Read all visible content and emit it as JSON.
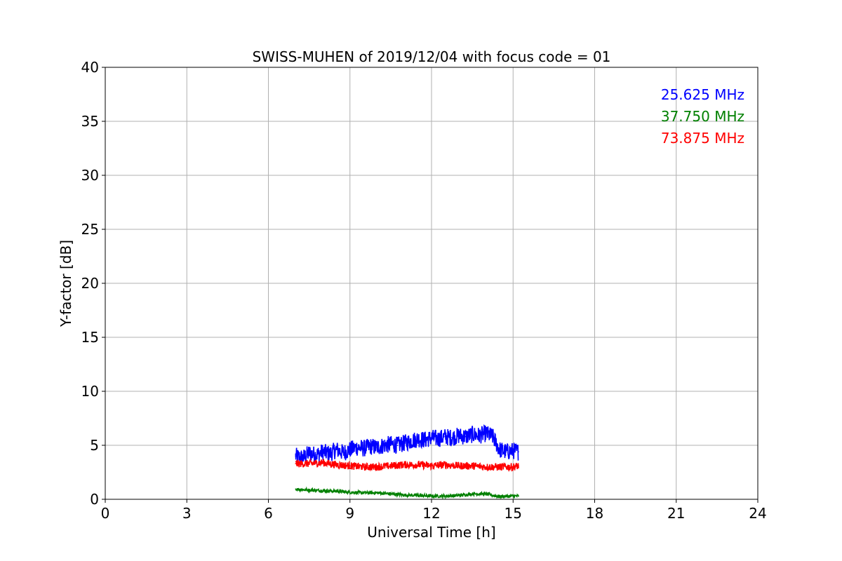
{
  "chart_data": {
    "type": "line",
    "title": "SWISS-MUHEN of 2019/12/04 with focus code = 01",
    "xlabel": "Universal Time [h]",
    "ylabel": "Y-factor [dB]",
    "xlim": [
      0,
      24
    ],
    "ylim": [
      0,
      40
    ],
    "x_ticks": [
      0,
      3,
      6,
      9,
      12,
      15,
      18,
      21,
      24
    ],
    "y_ticks": [
      0,
      5,
      10,
      15,
      20,
      25,
      30,
      35,
      40
    ],
    "grid": true,
    "legend_position": "top-right",
    "series": [
      {
        "name": "25.625 MHz",
        "color": "#0000ff",
        "x": [
          7.0,
          7.25,
          7.5,
          7.75,
          8.0,
          8.25,
          8.5,
          8.75,
          9.0,
          9.25,
          9.5,
          9.75,
          10.0,
          10.25,
          10.5,
          10.75,
          11.0,
          11.25,
          11.5,
          11.75,
          12.0,
          12.25,
          12.5,
          12.75,
          13.0,
          13.25,
          13.5,
          13.75,
          14.0,
          14.25,
          14.5,
          14.75,
          15.0,
          15.2
        ],
        "values": [
          4.0,
          3.8,
          4.3,
          4.1,
          4.4,
          4.2,
          4.6,
          4.3,
          4.6,
          4.8,
          4.7,
          4.9,
          4.8,
          5.0,
          5.1,
          5.0,
          5.2,
          5.4,
          5.6,
          5.5,
          5.7,
          5.6,
          5.8,
          5.7,
          5.9,
          5.8,
          6.0,
          5.9,
          6.1,
          5.8,
          4.6,
          4.4,
          4.5,
          4.4
        ],
        "spread": 0.8
      },
      {
        "name": "37.750 MHz",
        "color": "#008000",
        "x": [
          7.0,
          7.5,
          8.0,
          8.5,
          9.0,
          9.5,
          10.0,
          10.5,
          11.0,
          11.5,
          12.0,
          12.5,
          13.0,
          13.5,
          14.0,
          14.5,
          15.0,
          15.2
        ],
        "values": [
          0.95,
          0.85,
          0.8,
          0.75,
          0.65,
          0.6,
          0.6,
          0.5,
          0.4,
          0.35,
          0.3,
          0.3,
          0.35,
          0.5,
          0.5,
          0.25,
          0.3,
          0.3
        ],
        "spread": 0.15
      },
      {
        "name": "73.875 MHz",
        "color": "#ff0000",
        "x": [
          7.0,
          7.5,
          8.0,
          8.5,
          9.0,
          9.5,
          10.0,
          10.5,
          11.0,
          11.5,
          12.0,
          12.5,
          13.0,
          13.5,
          14.0,
          14.5,
          15.0,
          15.2
        ],
        "values": [
          3.3,
          3.3,
          3.4,
          3.2,
          3.1,
          3.0,
          3.0,
          3.1,
          3.2,
          3.2,
          3.1,
          3.2,
          3.1,
          3.1,
          3.0,
          3.0,
          3.0,
          3.1
        ],
        "spread": 0.35
      }
    ]
  }
}
